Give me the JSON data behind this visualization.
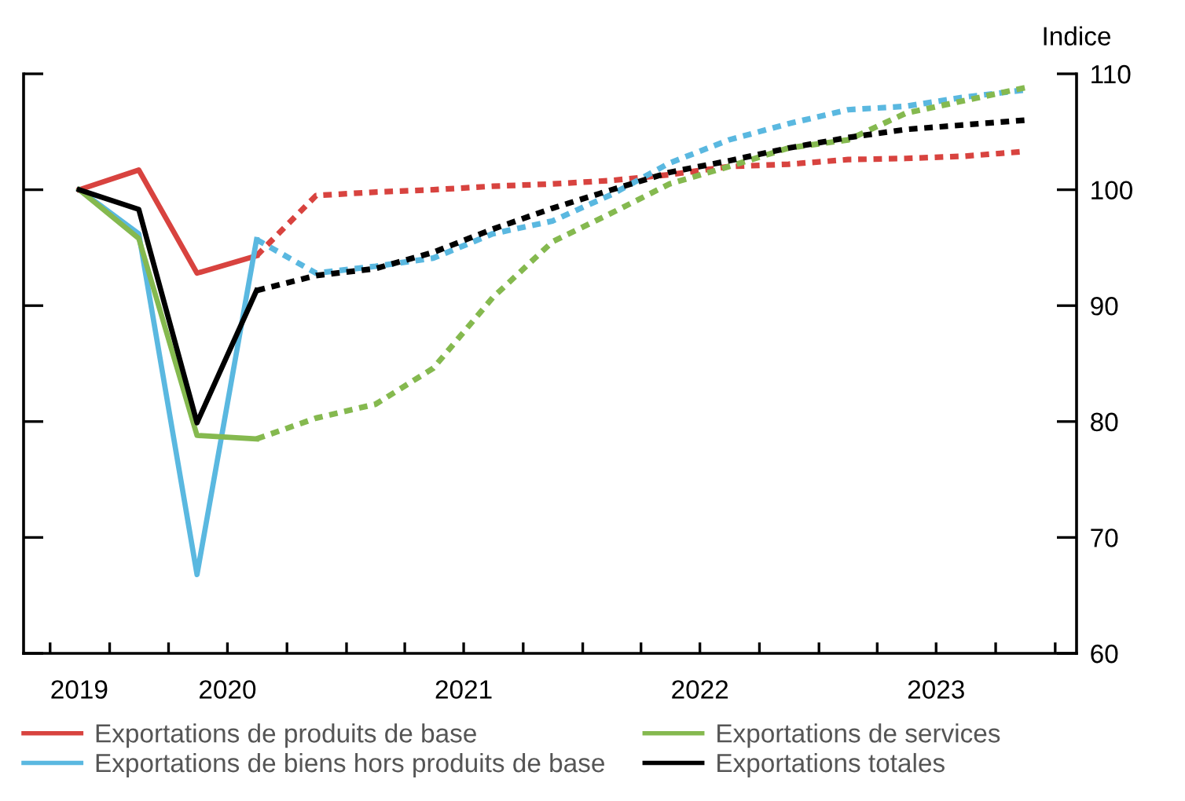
{
  "chart_data": {
    "type": "line",
    "ylabel": "Indice",
    "x": [
      "2019-11-15",
      "2020-02-15",
      "2020-05-15",
      "2020-08-15",
      "2020-11-15",
      "2021-02-15",
      "2021-05-15",
      "2021-08-15",
      "2021-11-15",
      "2022-02-15",
      "2022-05-15",
      "2022-08-15",
      "2022-11-15",
      "2023-02-15",
      "2023-05-15",
      "2023-08-15",
      "2023-11-15"
    ],
    "xlim": [
      "2019-08-21",
      "2024-02-03"
    ],
    "xticks": [
      {
        "value": "2019-10-01",
        "label": null
      },
      {
        "value": "2019-11-15",
        "label": "2019"
      },
      {
        "value": "2020-01-01",
        "label": null
      },
      {
        "value": "2020-04-01",
        "label": null
      },
      {
        "value": "2020-07-01",
        "label": "2020"
      },
      {
        "value": "2020-10-01",
        "label": null
      },
      {
        "value": "2021-01-01",
        "label": null
      },
      {
        "value": "2021-04-01",
        "label": null
      },
      {
        "value": "2021-07-01",
        "label": "2021"
      },
      {
        "value": "2021-10-01",
        "label": null
      },
      {
        "value": "2022-01-01",
        "label": null
      },
      {
        "value": "2022-04-01",
        "label": null
      },
      {
        "value": "2022-07-01",
        "label": "2022"
      },
      {
        "value": "2022-10-01",
        "label": null
      },
      {
        "value": "2023-01-01",
        "label": null
      },
      {
        "value": "2023-04-01",
        "label": null
      },
      {
        "value": "2023-07-01",
        "label": "2023"
      },
      {
        "value": "2023-10-01",
        "label": null
      },
      {
        "value": "2024-01-01",
        "label": null
      }
    ],
    "ylim": [
      60,
      110
    ],
    "yticks": [
      60,
      70,
      80,
      90,
      100,
      110
    ],
    "grid": false,
    "legend": "bottom",
    "marker": "none",
    "series": [
      {
        "name": "Exportations de produits de base",
        "color": "#d8433f",
        "line_style": "solid",
        "values": [
          100,
          101.7,
          92.8,
          94.3,
          null,
          null,
          null,
          null,
          null,
          null,
          null,
          null,
          null,
          null,
          null,
          null,
          null
        ]
      },
      {
        "color": "#d8433f",
        "line_style": "dotted",
        "values": [
          null,
          null,
          null,
          94.3,
          99.5,
          99.8,
          100,
          100.3,
          100.5,
          100.8,
          101.3,
          102,
          102.2,
          102.6,
          102.7,
          102.9,
          103.3
        ]
      },
      {
        "name": "Exportations de biens hors produits de base",
        "color": "#5ab8e0",
        "line_style": "solid",
        "values": [
          100,
          96.2,
          66.8,
          95.7,
          null,
          null,
          null,
          null,
          null,
          null,
          null,
          null,
          null,
          null,
          null,
          null,
          null
        ]
      },
      {
        "color": "#5ab8e0",
        "line_style": "dotted",
        "values": [
          null,
          null,
          null,
          95.7,
          92.8,
          93.4,
          94.1,
          96.2,
          97.3,
          99.6,
          102.3,
          104.3,
          105.7,
          106.9,
          107.2,
          108,
          108.6
        ]
      },
      {
        "name": "Exportations de services",
        "color": "#85b94f",
        "line_style": "solid",
        "values": [
          100,
          95.8,
          78.8,
          78.5,
          null,
          null,
          null,
          null,
          null,
          null,
          null,
          null,
          null,
          null,
          null,
          null,
          null
        ]
      },
      {
        "color": "#85b94f",
        "line_style": "dotted",
        "values": [
          null,
          null,
          null,
          78.5,
          80.3,
          81.5,
          84.6,
          90.7,
          95.5,
          98,
          100.5,
          102,
          103.6,
          104.3,
          106.6,
          107.7,
          108.8
        ]
      },
      {
        "name": "Exportations totales",
        "color": "#000000",
        "line_style": "solid",
        "values": [
          100,
          98.3,
          79.9,
          91.3,
          null,
          null,
          null,
          null,
          null,
          null,
          null,
          null,
          null,
          null,
          null,
          null,
          null
        ]
      },
      {
        "color": "#000000",
        "line_style": "dotted",
        "values": [
          null,
          null,
          null,
          91.3,
          92.6,
          93.2,
          94.6,
          96.6,
          98.4,
          100,
          101.5,
          102.5,
          103.6,
          104.5,
          105.2,
          105.6,
          106
        ]
      }
    ]
  }
}
